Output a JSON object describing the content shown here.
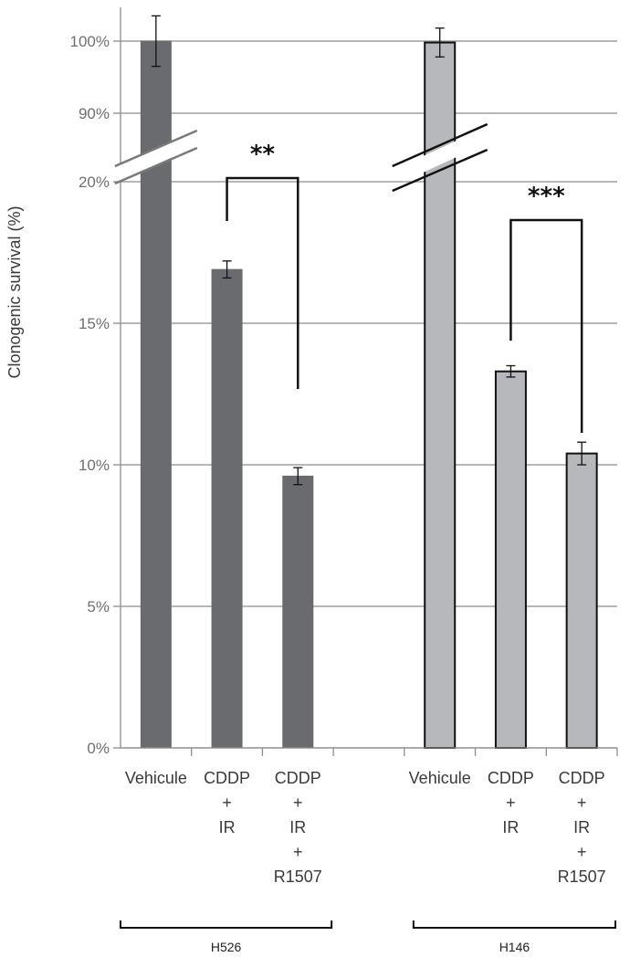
{
  "chart_data": {
    "type": "bar",
    "title": "",
    "ylabel": "Clonogenic survival (%)",
    "xlabel": "",
    "ylim": [
      0,
      100
    ],
    "axis_break": {
      "from": 20,
      "to": 90
    },
    "yticks": [
      {
        "value": 0,
        "label": "0%"
      },
      {
        "value": 5,
        "label": "5%"
      },
      {
        "value": 10,
        "label": "10%"
      },
      {
        "value": 15,
        "label": "15%"
      },
      {
        "value": 20,
        "label": "20%"
      },
      {
        "value": 90,
        "label": "90%"
      },
      {
        "value": 100,
        "label": "100%"
      }
    ],
    "groups": [
      {
        "name": "H526",
        "color": "#6a6b6e",
        "bars": [
          {
            "category": [
              "Vehicule"
            ],
            "value": 100,
            "error": 3.5
          },
          {
            "category": [
              "CDDP",
              "+",
              "IR"
            ],
            "value": 16.9,
            "error": 0.3
          },
          {
            "category": [
              "CDDP",
              "+",
              "IR",
              "+",
              "R1507"
            ],
            "value": 9.6,
            "error": 0.3
          }
        ],
        "significance": {
          "label": "**",
          "between": [
            1,
            2
          ]
        }
      },
      {
        "name": "H146",
        "color": "#b7b8bb",
        "bars": [
          {
            "category": [
              "Vehicule"
            ],
            "value": 99.8,
            "error": 2.0
          },
          {
            "category": [
              "CDDP",
              "+",
              "IR"
            ],
            "value": 13.3,
            "error": 0.2
          },
          {
            "category": [
              "CDDP",
              "+",
              "IR",
              "+",
              "R1507"
            ],
            "value": 10.4,
            "error": 0.4
          }
        ],
        "significance": {
          "label": "***",
          "between": [
            1,
            2
          ]
        }
      }
    ]
  }
}
